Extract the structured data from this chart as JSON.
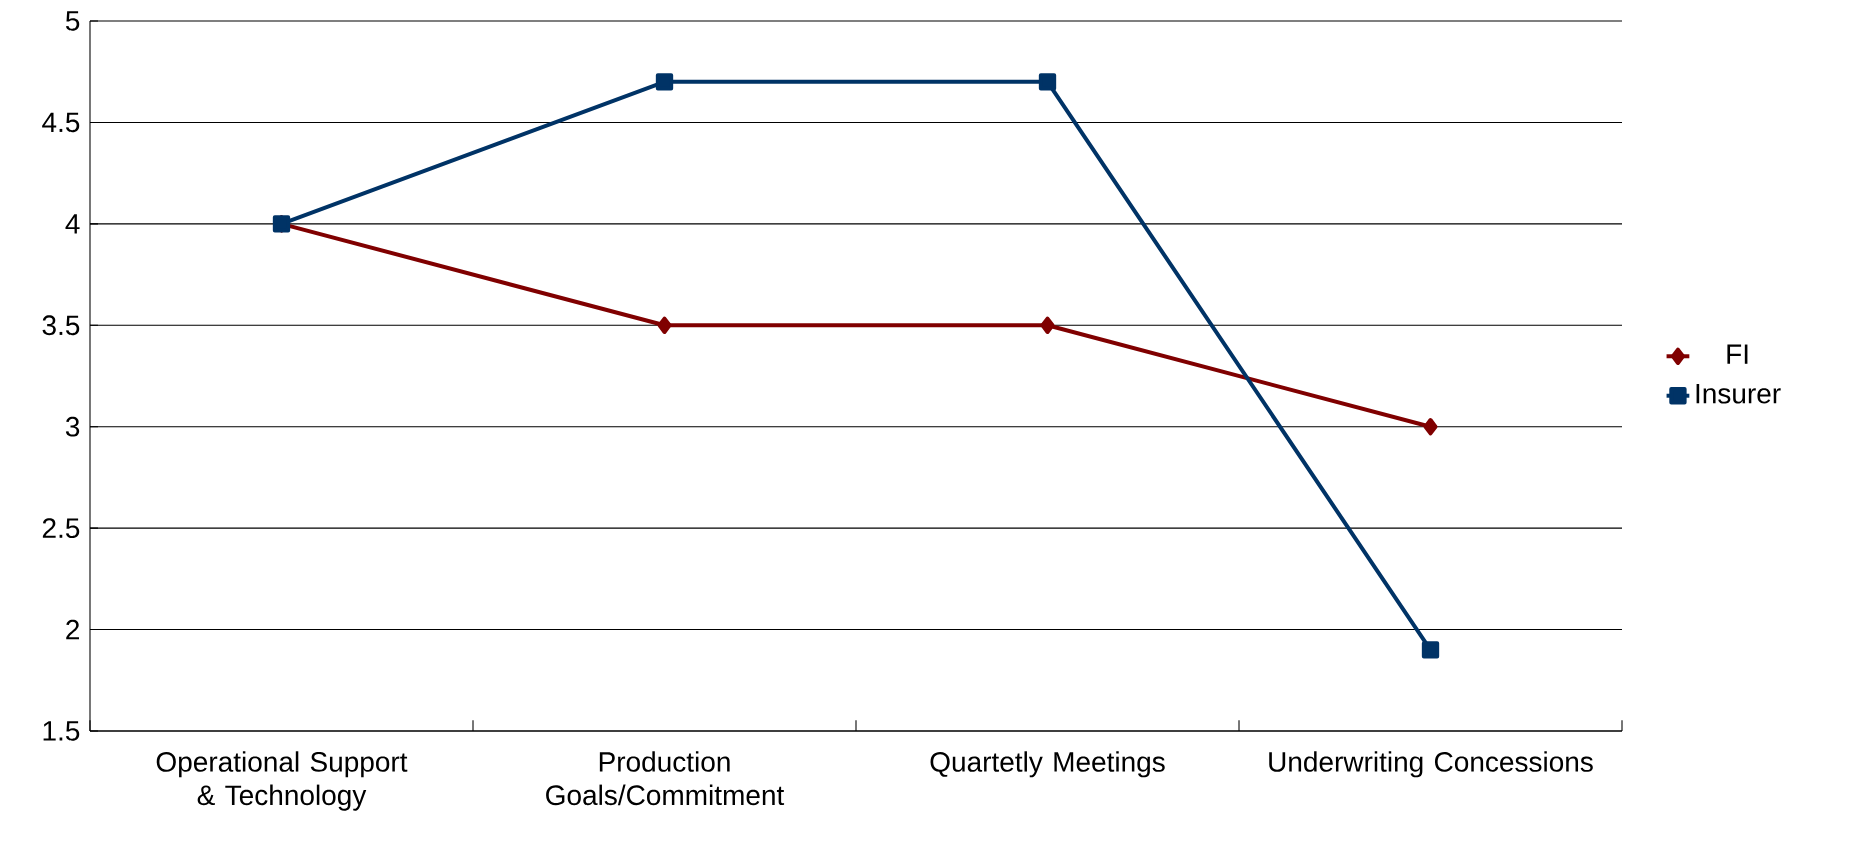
{
  "chart_data": {
    "type": "line",
    "categories": [
      "Operational Support & Technology",
      "Production Goals/Commitment",
      "Quartetly Meetings",
      "Underwriting Concessions"
    ],
    "series": [
      {
        "name": "FI",
        "color": "#800000",
        "values": [
          4,
          3.5,
          3.5,
          3
        ],
        "marker": "diamond"
      },
      {
        "name": "Insurer",
        "color": "#003366",
        "values": [
          4,
          4.7,
          4.7,
          1.9
        ],
        "marker": "square"
      }
    ],
    "ylim": [
      1.5,
      5
    ],
    "yticks": [
      1.5,
      2,
      2.5,
      3,
      3.5,
      4,
      4.5,
      5
    ],
    "grid": "y",
    "legend": "right",
    "line_style": "solid"
  }
}
